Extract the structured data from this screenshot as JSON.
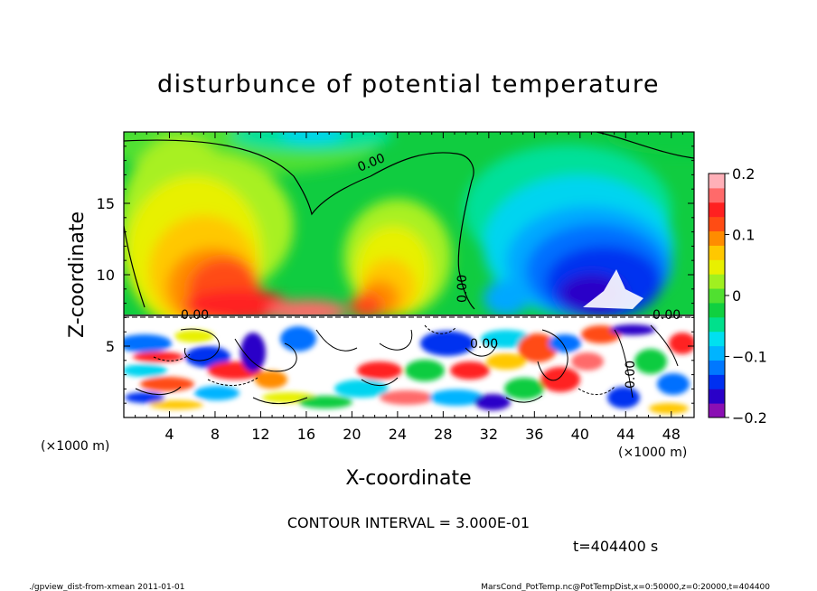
{
  "chart_data": {
    "type": "heatmap",
    "title": "disturbunce of potential temperature",
    "xlabel": "X-coordinate",
    "ylabel": "Z-coordinate",
    "x_unit": "(×1000 m)",
    "y_unit": "(×1000 m)",
    "xlim": [
      0,
      50
    ],
    "ylim": [
      0,
      20
    ],
    "x_ticks": [
      "4",
      "8",
      "12",
      "16",
      "20",
      "24",
      "28",
      "32",
      "36",
      "40",
      "44",
      "48"
    ],
    "y_ticks": [
      "5",
      "10",
      "15"
    ],
    "colorbar": {
      "range": [
        -0.2,
        0.2
      ],
      "tick_labels": [
        "0.2",
        "0.1",
        "0",
        "−0.1",
        "−0.2"
      ],
      "colors": [
        "#8a0fb3",
        "#2a00c8",
        "#0030f0",
        "#0078ff",
        "#00b4ff",
        "#00e0f0",
        "#00e08c",
        "#10d040",
        "#50e030",
        "#a0f020",
        "#e8f000",
        "#ffc800",
        "#ff8c00",
        "#ff4c14",
        "#ff2020",
        "#ff6a6a",
        "#ffb0b8"
      ]
    },
    "contour_labels": [
      "0.00",
      "0.00",
      "0.00",
      "0.00",
      "0.00",
      "0.00"
    ],
    "contour_interval_text": "CONTOUR INTERVAL = 3.000E-01",
    "time_text": "t=404400 s"
  },
  "footer": {
    "left": "./gpview_dist-from-xmean  2011-01-01",
    "right": "MarsCond_PotTemp.nc@PotTempDist,x=0:50000,z=0:20000,t=404400"
  }
}
